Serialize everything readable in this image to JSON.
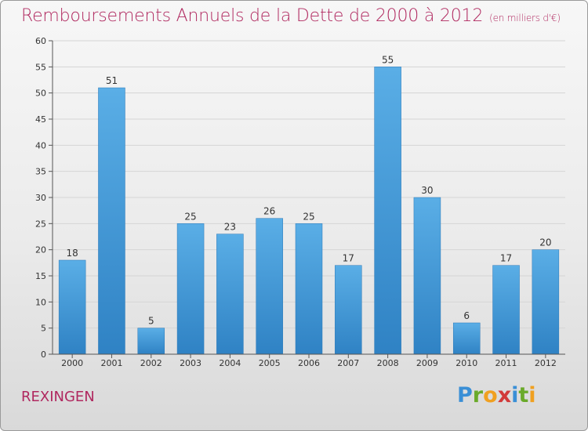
{
  "header": {
    "title": "Remboursements Annuels de la Dette de 2000 à 2012",
    "unit": "(en milliers d'€)"
  },
  "footer": {
    "commune": "REXINGEN",
    "logo": {
      "letters": [
        "P",
        "r",
        "o",
        "x",
        "i",
        "t",
        "i"
      ],
      "colors": [
        "#3a8fd6",
        "#6aaa2a",
        "#f0a020",
        "#d23a3a",
        "#3a8fd6",
        "#6aaa2a",
        "#f0a020"
      ]
    }
  },
  "colors": {
    "title": "#b0285f",
    "bar_light": "#5aaee6",
    "bar_dark": "#2f82c4",
    "gridline": "#d5d5d5"
  },
  "chart_data": {
    "type": "bar",
    "title": "Remboursements Annuels de la Dette de 2000 à 2012",
    "xlabel": "",
    "ylabel": "",
    "categories": [
      "2000",
      "2001",
      "2002",
      "2003",
      "2004",
      "2005",
      "2006",
      "2007",
      "2008",
      "2009",
      "2010",
      "2011",
      "2012"
    ],
    "values": [
      18,
      51,
      5,
      25,
      23,
      26,
      25,
      17,
      55,
      30,
      6,
      17,
      20
    ],
    "ylim": [
      0,
      60
    ],
    "yticks": [
      0,
      5,
      10,
      15,
      20,
      25,
      30,
      35,
      40,
      45,
      50,
      55,
      60
    ],
    "grid": true,
    "data_labels": true
  }
}
